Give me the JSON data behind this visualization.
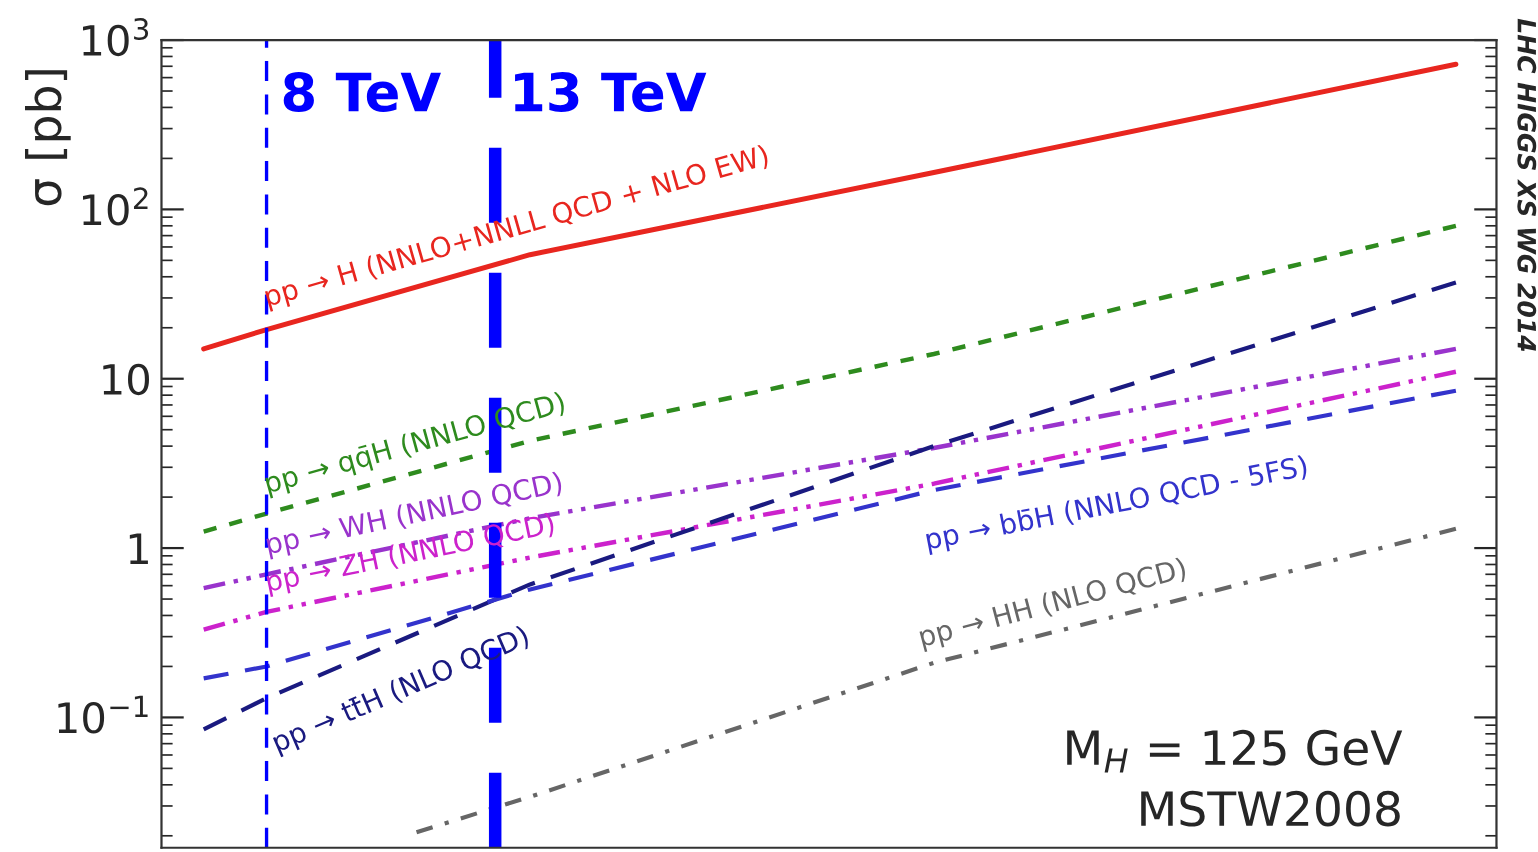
{
  "chart_data": {
    "type": "line",
    "ylabel": "σ [pb]",
    "log": "xy",
    "xlim": [
      6.4,
      109
    ],
    "ylim": [
      0.017,
      1000
    ],
    "yticks": [
      {
        "value": 0.1,
        "label": "10$^{−1}$"
      },
      {
        "value": 1,
        "label": "1"
      },
      {
        "value": 10,
        "label": "10"
      },
      {
        "value": 100,
        "label": "10$^{2}$"
      },
      {
        "value": 1000,
        "label": "10$^{3}$"
      }
    ],
    "tick_labels": "y",
    "grid": false,
    "series": [
      {
        "name": "pp → H (NNLO+NNLL QCD + NLO EW)",
        "color": "#e8261f",
        "line_style": "solid",
        "x": [
          7,
          8,
          14,
          33,
          100
        ],
        "values": [
          15,
          19.5,
          54,
          165,
          720
        ]
      },
      {
        "name": "pp → qq̄H (NNLO QCD)",
        "color": "#2e8b1e",
        "line_style": "dotted",
        "x": [
          7,
          8,
          14,
          33,
          100
        ],
        "values": [
          1.25,
          1.6,
          4.3,
          14,
          80
        ]
      },
      {
        "name": "pp → WH (NNLO QCD)",
        "color": "#9933cc",
        "line_style": "dashdotdot",
        "x": [
          7,
          8,
          14,
          33,
          100
        ],
        "values": [
          0.58,
          0.7,
          1.5,
          3.9,
          15
        ]
      },
      {
        "name": "pp → ZH (NNLO QCD)",
        "color": "#cc22cc",
        "line_style": "dashdotdot",
        "x": [
          7,
          8,
          14,
          33,
          100
        ],
        "values": [
          0.33,
          0.42,
          0.88,
          2.4,
          11
        ]
      },
      {
        "name": "pp → tt̄H (NLO QCD)",
        "color": "#1a1a80",
        "line_style": "dashed",
        "x": [
          7,
          8,
          14,
          33,
          100
        ],
        "values": [
          0.085,
          0.13,
          0.61,
          4,
          37
        ]
      },
      {
        "name": "pp → bb̄H (NNLO QCD - 5FS)",
        "color": "#3333cc",
        "line_style": "dashed",
        "x": [
          7,
          8,
          14,
          33,
          100
        ],
        "values": [
          0.17,
          0.2,
          0.57,
          2.2,
          8.5
        ]
      },
      {
        "name": "pp → HH (NLO QCD)",
        "color": "#666666",
        "line_style": "dashdot",
        "x": [
          11,
          14,
          33,
          100
        ],
        "values": [
          0.021,
          0.034,
          0.21,
          1.3
        ]
      }
    ],
    "ref_lines": [
      {
        "axis": "x",
        "value": 8,
        "label": "8 TeV",
        "color": "#0000ff",
        "line_style": "dashed"
      },
      {
        "axis": "x",
        "value": 13,
        "label": "13 TeV",
        "color": "#0000ff",
        "line_style": "dashed"
      }
    ],
    "annotations": [
      "M$_{H}$ = 125 GeV",
      "MSTW2008",
      "LHC HIGGS XS WG 2014"
    ]
  }
}
